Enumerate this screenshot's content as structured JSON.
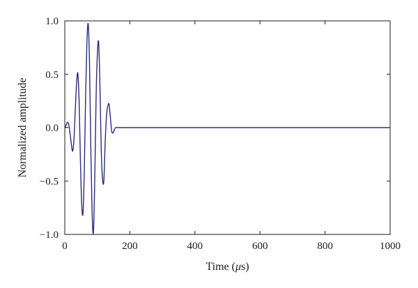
{
  "chart_data": {
    "type": "line",
    "title": "",
    "xlabel_prefix": "Time (",
    "xlabel_symbol": "μ",
    "xlabel_suffix": "s)",
    "ylabel": "Normalized amplitude",
    "xlim": [
      0,
      1000
    ],
    "ylim": [
      -1.0,
      1.0
    ],
    "x_ticks": [
      0,
      200,
      400,
      600,
      800,
      1000
    ],
    "x_tick_labels": [
      "0",
      "200",
      "400",
      "600",
      "800",
      "1000"
    ],
    "y_ticks": [
      1.0,
      0.5,
      0.0,
      -0.5,
      -1.0
    ],
    "y_tick_labels": [
      "1.0",
      "0.5",
      "0.0",
      "−0.5",
      "−1.0"
    ],
    "grid": false,
    "line_color": "#2e2a7a",
    "series": [
      {
        "x": [
          0,
          4,
          8,
          12,
          16,
          20,
          24,
          28,
          32,
          36,
          40,
          44,
          48,
          52,
          56,
          60,
          64,
          68,
          72,
          76,
          80,
          84,
          88,
          92,
          96,
          100,
          104,
          108,
          112,
          116,
          120,
          124,
          128,
          132,
          136,
          140,
          144,
          148,
          152,
          156,
          160,
          164,
          168,
          172,
          180,
          200,
          300,
          400,
          500,
          600,
          700,
          800,
          900,
          1000
        ],
        "y": [
          0.0,
          0.02,
          0.05,
          0.03,
          -0.05,
          -0.15,
          -0.22,
          -0.12,
          0.15,
          0.4,
          0.51,
          0.25,
          -0.3,
          -0.72,
          -0.8,
          -0.4,
          0.3,
          0.8,
          0.97,
          0.6,
          -0.2,
          -0.8,
          -0.98,
          -0.5,
          0.25,
          0.68,
          0.8,
          0.4,
          -0.2,
          -0.48,
          -0.5,
          -0.15,
          0.1,
          0.2,
          0.22,
          0.1,
          -0.03,
          -0.05,
          -0.02,
          0.0,
          0.0,
          0.0,
          0.0,
          0.0,
          0.0,
          0.0,
          0.0,
          0.0,
          0.0,
          0.0,
          0.0,
          0.0,
          0.0,
          0.0
        ]
      }
    ]
  }
}
